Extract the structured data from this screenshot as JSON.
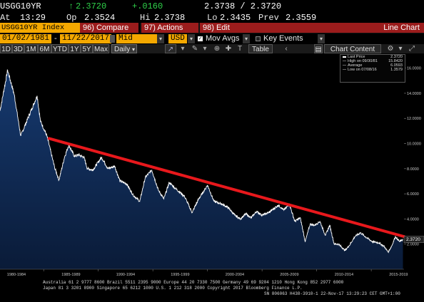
{
  "header": {
    "ticker": "USGG10YR",
    "last": "2.3720",
    "last_arrow": "↑",
    "change": "+.0160",
    "bid_ask": "2.3738 / 2.3720",
    "at_label": "At",
    "time": "13:29",
    "open_label": "Op",
    "open": "2.3524",
    "high_label": "Hi",
    "high": "2.3738",
    "low_label": "Lo",
    "low": "2.3435",
    "prev_label": "Prev",
    "prev": "2.3559"
  },
  "toolbar1": {
    "security": "USGG10YR Index",
    "compare": "96) Compare",
    "actions": "97) Actions",
    "edit": "98) Edit",
    "title": "Line Chart"
  },
  "toolbar2": {
    "start_date": "01/02/1981",
    "end_date": "11/22/2017",
    "field": "Mid Yield",
    "currency": "USD",
    "mov_avgs": "Mov Avgs",
    "key_events": "Key Events"
  },
  "toolbar3": {
    "periods": [
      "1D",
      "3D",
      "1M",
      "6M",
      "YTD",
      "1Y",
      "5Y",
      "Max"
    ],
    "frequency": "Daily",
    "table": "Table",
    "chart_content": "Chart Content"
  },
  "legend": {
    "last_label": "Last Price",
    "last_value": "2.3720",
    "high_label": "High on 09/30/81",
    "high_value": "15.8420",
    "avg_label": "Average",
    "avg_value": "6.0593",
    "low_label": "Low on 07/08/16",
    "low_value": "1.3579"
  },
  "price_tag": "2.3720",
  "footer": {
    "line1": "Australia 61 2 9777 8600 Brazil 5511 2395 9000 Europe 44 20 7330 7500 Germany 49 69 9204 1210 Hong Kong 852 2977 6000",
    "line2": "Japan 81 3 3201 8900          Singapore 65 6212 1000          U.S. 1 212 318 2000          Copyright 2017 Bloomberg Finance L.P.",
    "line3": "SN 806063 H438-3910-1 22-Nov-17 13:29:23 CET  GMT+1:00"
  },
  "colors": {
    "background": "#000000",
    "amber": "#f4a800",
    "green": "#2fd24a",
    "red_button": "#9b1c1c",
    "series_line": "#ffffff",
    "area_fill": "#0d2a55",
    "trend_line": "#e8181c"
  },
  "chart_data": {
    "type": "area",
    "x": [
      1981.0,
      1981.7,
      1982.3,
      1982.9,
      1983.5,
      1984.4,
      1984.7,
      1985.3,
      1986.0,
      1986.4,
      1986.9,
      1987.3,
      1987.8,
      1988.2,
      1988.7,
      1989.0,
      1989.5,
      1990.3,
      1990.9,
      1991.5,
      1992.0,
      1992.6,
      1993.2,
      1993.8,
      1994.3,
      1994.9,
      1995.5,
      1996.0,
      1996.5,
      1997.1,
      1997.9,
      1998.6,
      1998.8,
      1999.2,
      1999.8,
      2000.0,
      2000.6,
      2001.3,
      2001.9,
      2002.5,
      2003.0,
      2003.5,
      2004.0,
      2004.5,
      2005.0,
      2005.6,
      2006.5,
      2007.0,
      2007.5,
      2008.0,
      2008.5,
      2008.95,
      2009.4,
      2009.8,
      2010.3,
      2010.8,
      2011.2,
      2011.6,
      2012.0,
      2012.6,
      2013.0,
      2013.5,
      2014.0,
      2014.6,
      2015.1,
      2015.7,
      2016.2,
      2016.55,
      2016.9,
      2017.2,
      2017.6,
      2017.9
    ],
    "values": [
      12.6,
      15.84,
      13.9,
      10.6,
      11.9,
      13.8,
      11.8,
      10.6,
      8.1,
      7.1,
      8.9,
      9.9,
      9.0,
      9.1,
      8.9,
      8.0,
      7.9,
      8.9,
      8.0,
      8.2,
      7.0,
      6.8,
      5.9,
      5.4,
      7.3,
      7.9,
      6.3,
      5.6,
      6.9,
      6.4,
      5.8,
      4.5,
      4.9,
      5.6,
      6.4,
      6.7,
      5.4,
      5.2,
      4.9,
      4.3,
      4.0,
      4.4,
      4.1,
      4.6,
      4.3,
      4.5,
      5.1,
      4.7,
      5.2,
      3.8,
      4.1,
      2.2,
      3.6,
      3.5,
      3.8,
      2.7,
      3.5,
      2.0,
      2.0,
      1.5,
      1.9,
      2.6,
      2.9,
      2.5,
      2.2,
      2.1,
      1.8,
      1.36,
      1.9,
      2.6,
      2.2,
      2.372
    ],
    "xlim": [
      1981,
      2018
    ],
    "ylim": [
      0,
      17
    ],
    "y_ticks": [
      "2.0000",
      "4.0000",
      "6.0000",
      "8.0000",
      "10.0000",
      "12.0000",
      "14.0000",
      "16.0000"
    ],
    "x_tick_labels": [
      "1980-1984",
      "1985-1989",
      "1990-1994",
      "1995-1999",
      "2000-2004",
      "2005-2009",
      "2010-2014",
      "2015-2019"
    ],
    "trend_line": {
      "x": [
        1985.5,
        2018.0
      ],
      "values": [
        10.4,
        2.6
      ]
    },
    "grid": false
  }
}
